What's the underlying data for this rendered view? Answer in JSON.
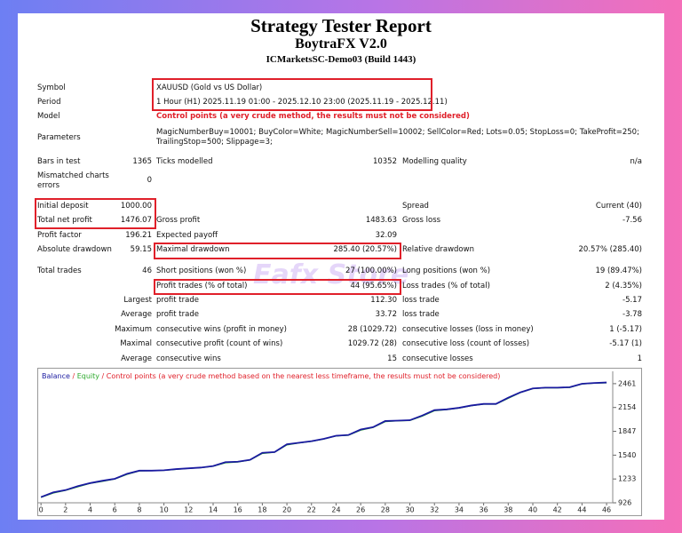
{
  "header": {
    "title": "Strategy Tester Report",
    "subtitle": "BoytraFX V2.0",
    "server": "ICMarketsSC-Demo03 (Build 1443)"
  },
  "watermark": "Eafx Store",
  "table": {
    "rows": [
      {
        "label1": "Symbol",
        "text": [
          "XAUUSD (Gold vs US Dollar)"
        ]
      },
      {
        "label1": "Period",
        "text": [
          "1 Hour (H1) 2025.11.19 01:00 - 2025.12.10 23:00 (2025.11.19 - 2025.12.11)"
        ]
      },
      {
        "label1": "Model",
        "text": [
          "Control points (a very crude method, the results must not be considered)"
        ]
      },
      {
        "label1": "Parameters",
        "text": [
          "MagicNumberBuy=10001; BuyColor=White; MagicNumberSell=10002; SellColor=Red; Lots=0.05; StopLoss=0; TakeProfit=250;",
          "TrailingStop=500; Slippage=3;"
        ]
      },
      {
        "label1": "Bars in test",
        "value1": "1365",
        "label2": "Ticks modelled",
        "value2": "10352",
        "label3": "Modelling quality",
        "value3": "n/a"
      },
      {
        "label1": "Mismatched charts errors",
        "value1": "0"
      },
      {
        "label1": "Initial deposit",
        "value1": "1000.00",
        "label3": "Spread",
        "value3": "Current (40)"
      },
      {
        "label1": "Total net profit",
        "value1": "1476.07",
        "label2": "Gross profit",
        "value2": "1483.63",
        "label3": "Gross loss",
        "value3": "-7.56"
      },
      {
        "label1": "Profit factor",
        "value1": "196.21",
        "label2": "Expected payoff",
        "value2": "32.09"
      },
      {
        "label1": "Absolute drawdown",
        "value1": "59.15",
        "label2": "Maximal drawdown",
        "value2": "285.40 (20.57%)",
        "label3": "Relative drawdown",
        "value3": "20.57% (285.40)"
      },
      {
        "label1": "Total trades",
        "value1": "46",
        "label2": "Short positions (won %)",
        "value2": "27 (100.00%)",
        "label3": "Long positions (won %)",
        "value3": "19 (89.47%)"
      },
      {
        "label2": "Profit trades (% of total)",
        "value2": "44 (95.65%)",
        "label3": "Loss trades (% of total)",
        "value3": "2 (4.35%)"
      },
      {
        "heading": "Largest",
        "label2": "profit trade",
        "value2": "112.30",
        "label3": "loss trade",
        "value3": "-5.17"
      },
      {
        "heading": "Average",
        "label2": "profit trade",
        "value2": "33.72",
        "label3": "loss trade",
        "value3": "-3.78"
      },
      {
        "heading": "Maximum",
        "label2": "consecutive wins (profit in money)",
        "value2": "28 (1029.72)",
        "label3": "consecutive losses (loss in money)",
        "value3": "1 (-5.17)"
      },
      {
        "heading": "Maximal",
        "label2": "consecutive profit (count of wins)",
        "value2": "1029.72 (28)",
        "label3": "consecutive loss (count of losses)",
        "value3": "-5.17 (1)"
      },
      {
        "heading": "Average",
        "label2": "consecutive wins",
        "value2": "15",
        "label3": "consecutive losses",
        "value3": "1"
      }
    ]
  },
  "chart_data": {
    "type": "line",
    "legend_separator": "/",
    "legend_note": "Control points (a very crude method based on the nearest less timeframe, the results must not be considered)",
    "x": [
      0,
      1,
      2,
      3,
      4,
      5,
      6,
      7,
      8,
      9,
      10,
      11,
      12,
      13,
      14,
      15,
      16,
      17,
      18,
      19,
      20,
      21,
      22,
      23,
      24,
      25,
      26,
      27,
      28,
      29,
      30,
      31,
      32,
      33,
      34,
      35,
      36,
      37,
      38,
      39,
      40,
      41,
      42,
      43,
      44,
      45,
      46
    ],
    "series": [
      {
        "name": "Balance",
        "color": "#1a1aa0",
        "values": [
          1000,
          1060,
          1090,
          1140,
          1180,
          1210,
          1235,
          1300,
          1340,
          1340,
          1345,
          1360,
          1370,
          1380,
          1400,
          1450,
          1455,
          1480,
          1570,
          1580,
          1680,
          1700,
          1720,
          1750,
          1790,
          1800,
          1870,
          1900,
          1980,
          1985,
          1990,
          2050,
          2120,
          2130,
          2150,
          2180,
          2200,
          2200,
          2280,
          2350,
          2400,
          2410,
          2410,
          2415,
          2460,
          2470,
          2476
        ]
      },
      {
        "name": "Equity",
        "color": "#2eaa2e",
        "values": [
          995,
          1050,
          1085,
          1130,
          1175,
          1200,
          1230,
          1290,
          1335,
          1338,
          1342,
          1355,
          1368,
          1376,
          1395,
          1440,
          1450,
          1475,
          1560,
          1575,
          1670,
          1695,
          1715,
          1745,
          1785,
          1795,
          1860,
          1895,
          1970,
          1980,
          1985,
          2040,
          2110,
          2125,
          2145,
          2175,
          2195,
          2195,
          2270,
          2345,
          2395,
          2405,
          2405,
          2410,
          2455,
          2465,
          2470
        ]
      }
    ],
    "xlim": [
      -0.3,
      46.5
    ],
    "ylim": [
      926,
      2620
    ],
    "xticks": [
      0,
      2,
      4,
      6,
      8,
      10,
      12,
      14,
      16,
      18,
      20,
      22,
      24,
      26,
      28,
      30,
      32,
      34,
      36,
      38,
      40,
      42,
      44,
      46
    ],
    "yticks": [
      926,
      1233,
      1540,
      1847,
      2154,
      2461
    ]
  }
}
